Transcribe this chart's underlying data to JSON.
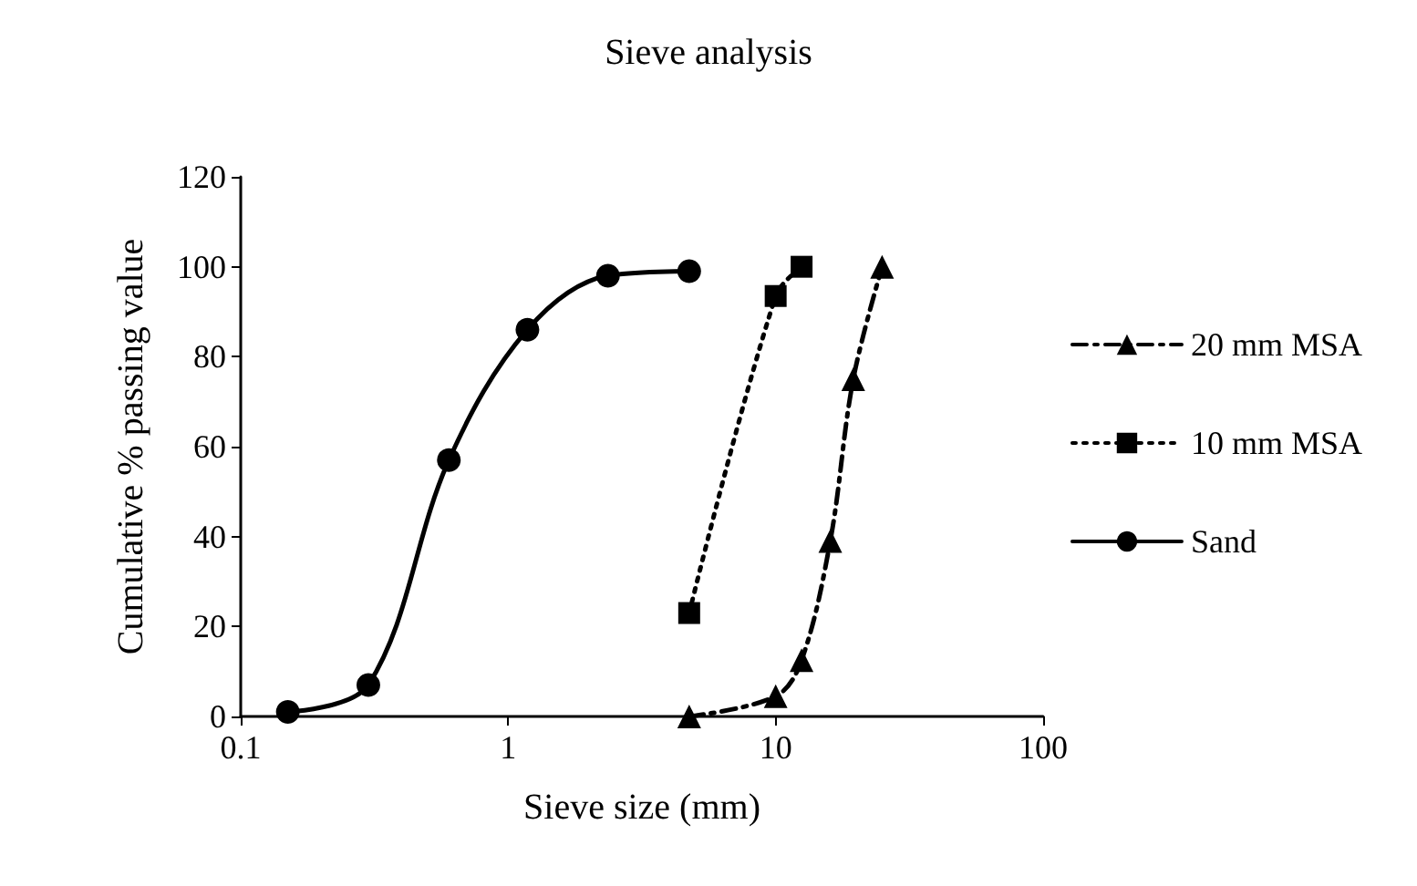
{
  "chart_data": {
    "type": "line",
    "title": "Sieve analysis",
    "xlabel": "Sieve size (mm)",
    "ylabel": "Cumulative % passing value",
    "log": "x",
    "xlim": [
      0.1,
      100
    ],
    "xticks": [
      0.1,
      1,
      10,
      100
    ],
    "ylim": [
      0,
      120
    ],
    "yticks": [
      0,
      20,
      40,
      60,
      80,
      100,
      120
    ],
    "grid": false,
    "legend": "right",
    "series": [
      {
        "name": "20 mm MSA",
        "color": "#000000",
        "marker": "triangle",
        "line_style": "dashed",
        "x": [
          4.75,
          10,
          12.5,
          16,
          19.5,
          25
        ],
        "values": [
          0,
          4.5,
          12.5,
          39,
          75,
          100
        ]
      },
      {
        "name": "10 mm MSA",
        "color": "#000000",
        "marker": "square",
        "line_style": "dotted",
        "x": [
          4.75,
          10,
          12.5
        ],
        "values": [
          23,
          93.5,
          100
        ]
      },
      {
        "name": "Sand",
        "color": "#000000",
        "marker": "circle",
        "line_style": "solid",
        "x": [
          0.15,
          0.3,
          0.6,
          1.18,
          2.36,
          4.75
        ],
        "values": [
          1,
          7,
          57,
          86,
          98,
          99
        ]
      }
    ]
  }
}
